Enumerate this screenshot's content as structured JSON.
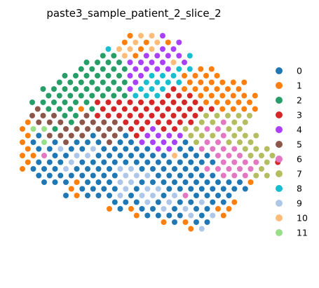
{
  "chart_data": {
    "type": "scatter",
    "title": "paste3_sample_patient_2_slice_2",
    "xlabel": "",
    "ylabel": "",
    "grid": false,
    "axes_visible": false,
    "legend_position": "right",
    "palette": {
      "0": "#1f77b4",
      "1": "#ff7f0e",
      "2": "#279e68",
      "3": "#d62728",
      "4": "#aa40fc",
      "5": "#8c564b",
      "6": "#e377c2",
      "7": "#b5bd61",
      "8": "#17becf",
      "9": "#aec7e8",
      "10": "#ffbb78",
      "11": "#98df8a"
    },
    "legend": [
      "0",
      "1",
      "2",
      "3",
      "4",
      "5",
      "6",
      "7",
      "8",
      "9",
      "10",
      "11"
    ],
    "rows": [
      {
        "y": 0,
        "x0": 9,
        "labels": [
          "1",
          "10",
          "10",
          "4"
        ]
      },
      {
        "y": 1,
        "x0": 8,
        "labels": [
          "1",
          "10",
          "1",
          "10",
          "1",
          "4"
        ]
      },
      {
        "y": 2,
        "x0": 7,
        "labels": [
          "8",
          "10",
          "10",
          "1",
          "10",
          "4",
          "4"
        ]
      },
      {
        "y": 3,
        "x0": 6,
        "labels": [
          "2",
          "2",
          "10",
          "1",
          "4",
          "4",
          "4",
          "4",
          "8"
        ]
      },
      {
        "y": 4,
        "x0": 5,
        "labels": [
          "2",
          "2",
          "2",
          "2",
          "4",
          "4",
          "4",
          "4",
          "10",
          "4"
        ]
      },
      {
        "y": 5,
        "x0": 4,
        "labels": [
          "2",
          "2",
          "2",
          "2",
          "2",
          "4",
          "4",
          "4",
          "4",
          "8",
          "8",
          "1",
          "1"
        ]
      },
      {
        "y": 6,
        "x0": 3,
        "labels": [
          "2",
          "2",
          "2",
          "2",
          "2",
          "2",
          "4",
          "4",
          "8",
          "8",
          "8",
          "1",
          "1",
          "1",
          "1"
        ]
      },
      {
        "y": 7,
        "x0": 2,
        "labels": [
          "2",
          "2",
          "2",
          "2",
          "2",
          "2",
          "2",
          "4",
          "8",
          "8",
          "8",
          "8",
          "1",
          "1",
          "1",
          "1",
          "1",
          "1"
        ]
      },
      {
        "y": 8,
        "x0": 1,
        "labels": [
          "2",
          "2",
          "2",
          "2",
          "2",
          "2",
          "2",
          "2",
          "4",
          "8",
          "8",
          "8",
          "3",
          "1",
          "1",
          "1",
          "1",
          "1",
          "1"
        ]
      },
      {
        "y": 9,
        "x0": 1,
        "labels": [
          "2",
          "2",
          "2",
          "2",
          "2",
          "2",
          "2",
          "2",
          "8",
          "8",
          "8",
          "3",
          "3",
          "3",
          "1",
          "1",
          "1",
          "1",
          "1",
          "1"
        ]
      },
      {
        "y": 10,
        "x0": 0,
        "labels": [
          "2",
          "2",
          "2",
          "2",
          "2",
          "2",
          "3",
          "3",
          "3",
          "3",
          "3",
          "3",
          "3",
          "3",
          "3",
          "3",
          "1",
          "1",
          "1",
          "1",
          "1"
        ]
      },
      {
        "y": 11,
        "x0": 0,
        "labels": [
          "5",
          "2",
          "2",
          "2",
          "1",
          "2",
          "3",
          "3",
          "3",
          "3",
          "3",
          "3",
          "3",
          "3",
          "3",
          "3",
          "3",
          "1",
          "1",
          "1",
          "1"
        ]
      },
      {
        "y": 12,
        "x0": 0,
        "labels": [
          "5",
          "5",
          "5",
          "2",
          "2",
          "5",
          "3",
          "3",
          "3",
          "3",
          "3",
          "3",
          "3",
          "3",
          "3",
          "3",
          "7",
          "7",
          "7",
          "7",
          "7"
        ]
      },
      {
        "y": 13,
        "x0": 0,
        "labels": [
          "1",
          "5",
          "5",
          "5",
          "2",
          "5",
          "5",
          "5",
          "5",
          "3",
          "3",
          "3",
          "3",
          "3",
          "3",
          "3",
          "7",
          "7",
          "6",
          "7",
          "7"
        ]
      },
      {
        "y": 14,
        "x0": 0,
        "labels": [
          "1",
          "11",
          "11",
          "2",
          "5",
          "5",
          "5",
          "5",
          "5",
          "5",
          "3",
          "3",
          "4",
          "3",
          "3",
          "7",
          "7",
          "6",
          "6",
          "7",
          "7"
        ]
      },
      {
        "y": 15,
        "x0": 0,
        "labels": [
          "1",
          "0",
          "5",
          "5",
          "5",
          "5",
          "0",
          "5",
          "5",
          "0",
          "3",
          "4",
          "4",
          "4",
          "4",
          "7",
          "7",
          "7",
          "6",
          "7",
          "7",
          "7"
        ]
      },
      {
        "y": 16,
        "x0": 0,
        "labels": [
          "1",
          "0",
          "11",
          "0",
          "5",
          "0",
          "0",
          "0",
          "5",
          "0",
          "0",
          "4",
          "4",
          "4",
          "4",
          "0",
          "7",
          "6",
          "6",
          "7",
          "7",
          "7"
        ]
      },
      {
        "y": 17,
        "x0": 0,
        "labels": [
          "1",
          "0",
          "0",
          "9",
          "0",
          "0",
          "9",
          "0",
          "0",
          "0",
          "0",
          "0",
          "4",
          "4",
          "0",
          "0",
          "6",
          "6",
          "6",
          "6",
          "7",
          "7",
          "7"
        ]
      },
      {
        "y": 18,
        "x0": 0,
        "labels": [
          "1",
          "1",
          "6",
          "0",
          "0",
          "9",
          "9",
          "0",
          "0",
          "0",
          "0",
          "0",
          "0",
          "0",
          "10",
          "0",
          "0",
          "0",
          "6",
          "6",
          "6",
          "7",
          "7",
          "7"
        ]
      },
      {
        "y": 19,
        "x0": 0,
        "labels": [
          "1",
          "0",
          "0",
          "0",
          "9",
          "0",
          "0",
          "0",
          "0",
          "0",
          "0",
          "0",
          "0",
          "0",
          "0",
          "0",
          "0",
          "0",
          "6",
          "6",
          "6",
          "6",
          "7",
          "3"
        ]
      },
      {
        "y": 20,
        "x0": 0,
        "labels": [
          "1",
          "0",
          "0",
          "0",
          "9",
          "0",
          "0",
          "0",
          "0",
          "9",
          "9",
          "0",
          "0",
          "0",
          "0",
          "0",
          "0",
          "6",
          "6",
          "6",
          "6",
          "6",
          "7"
        ]
      },
      {
        "y": 21,
        "x0": 1,
        "labels": [
          "0",
          "0",
          "0",
          "0",
          "0",
          "0",
          "0",
          "0",
          "9",
          "9",
          "9",
          "0",
          "0",
          "0",
          "0",
          "0",
          "0",
          "6",
          "6",
          "6",
          "7",
          "7"
        ]
      },
      {
        "y": 22,
        "x0": 2,
        "labels": [
          "0",
          "0",
          "0",
          "1",
          "0",
          "0",
          "0",
          "9",
          "9",
          "0",
          "0",
          "0",
          "0",
          "0",
          "0",
          "0",
          "0",
          "0",
          "0",
          "1"
        ]
      },
      {
        "y": 23,
        "x0": 4,
        "labels": [
          "1",
          "0",
          "0",
          "0",
          "0",
          "9",
          "0",
          "9",
          "9",
          "0",
          "0",
          "0",
          "0",
          "0",
          "0",
          "0",
          "0"
        ]
      },
      {
        "y": 24,
        "x0": 4,
        "labels": [
          "0",
          "1",
          "0",
          "0",
          "0",
          "9",
          "0",
          "9",
          "9",
          "0",
          "9",
          "6",
          "0",
          "0",
          "0",
          "0"
        ]
      },
      {
        "y": 25,
        "x0": 8,
        "labels": [
          "0",
          "0",
          "0",
          "9",
          "0",
          "9",
          "0",
          "0",
          "9",
          "0",
          "0",
          "1"
        ]
      },
      {
        "y": 26,
        "x0": 8,
        "labels": [
          "1",
          "0",
          "1",
          "0",
          "0",
          "9",
          "0",
          "9",
          "0",
          "0",
          "1",
          "1"
        ]
      },
      {
        "y": 27,
        "x0": 10,
        "labels": [
          "1",
          "0",
          "0",
          "0",
          "0",
          "9",
          "0",
          "9",
          "1"
        ]
      },
      {
        "y": 28,
        "x0": 13,
        "labels": [
          "1",
          "0",
          "1",
          "0",
          "0"
        ]
      },
      {
        "y": 29,
        "x0": 15,
        "labels": [
          "1",
          "9"
        ]
      }
    ]
  }
}
